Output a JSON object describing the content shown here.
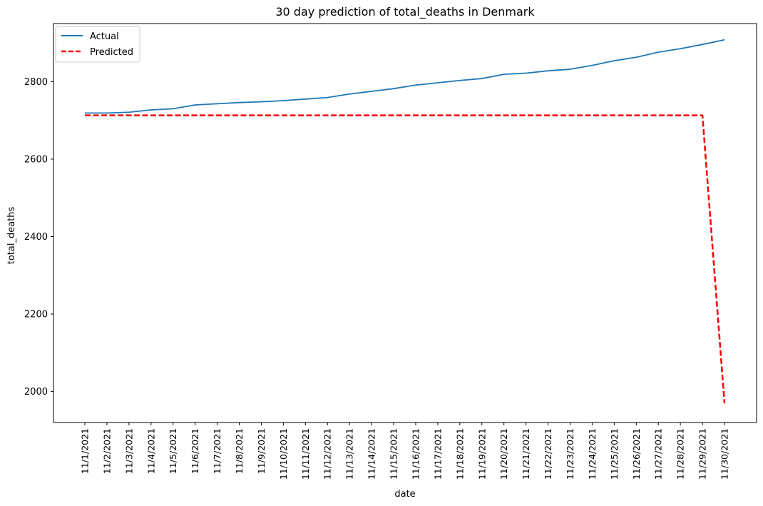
{
  "chart_data": {
    "type": "line",
    "title": "30 day prediction of total_deaths in Denmark",
    "xlabel": "date",
    "ylabel": "total_deaths",
    "categories": [
      "11/1/2021",
      "11/2/2021",
      "11/3/2021",
      "11/4/2021",
      "11/5/2021",
      "11/6/2021",
      "11/7/2021",
      "11/8/2021",
      "11/9/2021",
      "11/10/2021",
      "11/11/2021",
      "11/12/2021",
      "11/13/2021",
      "11/14/2021",
      "11/15/2021",
      "11/16/2021",
      "11/17/2021",
      "11/18/2021",
      "11/19/2021",
      "11/20/2021",
      "11/21/2021",
      "11/22/2021",
      "11/23/2021",
      "11/24/2021",
      "11/25/2021",
      "11/26/2021",
      "11/27/2021",
      "11/28/2021",
      "11/29/2021",
      "11/30/2021"
    ],
    "ylim": [
      1920,
      2950
    ],
    "yticks": [
      2000,
      2200,
      2400,
      2600,
      2800
    ],
    "grid": false,
    "legend_position": "top-left",
    "series": [
      {
        "name": "Actual",
        "color": "#1f77b4",
        "style": "solid",
        "values": [
          2719,
          2719,
          2721,
          2727,
          2730,
          2740,
          2743,
          2746,
          2748,
          2751,
          2755,
          2759,
          2768,
          2775,
          2782,
          2791,
          2797,
          2803,
          2808,
          2819,
          2822,
          2828,
          2832,
          2842,
          2854,
          2863,
          2876,
          2885,
          2896,
          2908
        ]
      },
      {
        "name": "Predicted",
        "color": "#ff0000",
        "style": "dashed",
        "values": [
          2713,
          2713,
          2713,
          2713,
          2713,
          2713,
          2713,
          2713,
          2713,
          2713,
          2713,
          2713,
          2713,
          2713,
          2713,
          2713,
          2713,
          2713,
          2713,
          2713,
          2713,
          2713,
          2713,
          2713,
          2713,
          2713,
          2713,
          2713,
          2713,
          1970
        ]
      }
    ]
  }
}
